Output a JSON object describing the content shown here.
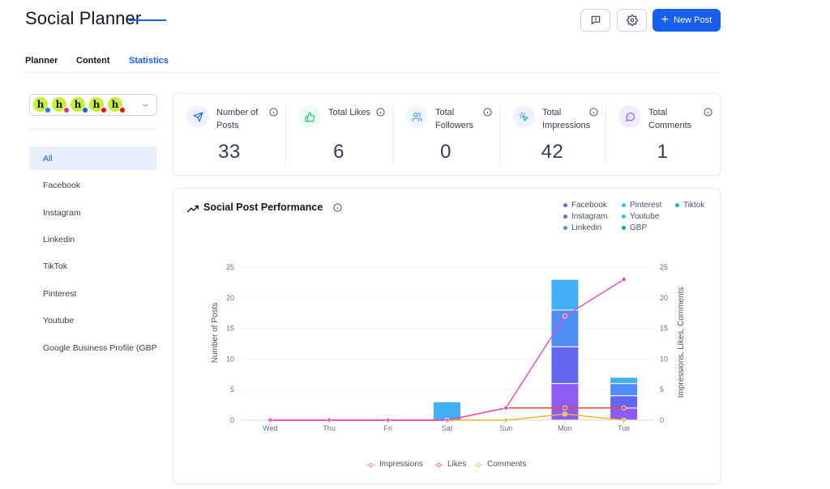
{
  "header": {
    "title": "Social Planner",
    "new_post_label": "New Post"
  },
  "tabs": [
    {
      "label": "Planner",
      "active": false
    },
    {
      "label": "Content",
      "active": false
    },
    {
      "label": "Statistics",
      "active": true
    }
  ],
  "accounts": [
    {
      "initial": "h",
      "badge_color": "#1877f2",
      "platform": "facebook"
    },
    {
      "initial": "h",
      "badge_color": "#e1306c",
      "platform": "instagram"
    },
    {
      "initial": "h",
      "badge_color": "#0a66c2",
      "platform": "linkedin"
    },
    {
      "initial": "h",
      "badge_color": "#e60023",
      "platform": "pinterest"
    },
    {
      "initial": "h",
      "badge_color": "#ff0000",
      "platform": "youtube"
    }
  ],
  "sidebar": {
    "items": [
      {
        "label": "All",
        "active": true
      },
      {
        "label": "Facebook",
        "active": false
      },
      {
        "label": "Instagram",
        "active": false
      },
      {
        "label": "Linkedin",
        "active": false
      },
      {
        "label": "TikTok",
        "active": false
      },
      {
        "label": "Pinterest",
        "active": false
      },
      {
        "label": "Youtube",
        "active": false
      },
      {
        "label": "Google Business Profile (GBP)",
        "active": false
      }
    ]
  },
  "stats": [
    {
      "label": "Number of Posts",
      "value": "33",
      "icon": "send-icon",
      "icon_bg": "#eef4ff",
      "icon_color": "#155eef"
    },
    {
      "label": "Total Likes",
      "value": "6",
      "icon": "thumbs-up-icon",
      "icon_bg": "#ecfdf3",
      "icon_color": "#12b76a"
    },
    {
      "label": "Total Followers",
      "value": "0",
      "icon": "users-icon",
      "icon_bg": "#eff8ff",
      "icon_color": "#2e90fa"
    },
    {
      "label": "Total Impressions",
      "value": "42",
      "icon": "pointer-click-icon",
      "icon_bg": "#eef4ff",
      "icon_color": "#2e90fa"
    },
    {
      "label": "Total Comments",
      "value": "1",
      "icon": "message-icon",
      "icon_bg": "#f4ebff",
      "icon_color": "#7a5af8"
    }
  ],
  "chart_card": {
    "title": "Social Post Performance",
    "legend": [
      {
        "name": "Facebook",
        "color": "#7a5af8"
      },
      {
        "name": "Pinterest",
        "color": "#36bffa"
      },
      {
        "name": "Tiktok",
        "color": "#15b79e"
      },
      {
        "name": "Instagram",
        "color": "#6172f3"
      },
      {
        "name": "Youtube",
        "color": "#22ccee"
      },
      {
        "name": "Linkedin",
        "color": "#528bff"
      },
      {
        "name": "GBP",
        "color": "#0ea5a0"
      }
    ],
    "bottom_legend": [
      {
        "name": "Impressions",
        "color": "#ee46bc"
      },
      {
        "name": "Likes",
        "color": "#f04438"
      },
      {
        "name": "Comments",
        "color": "#fdb022"
      }
    ]
  },
  "chart_data": {
    "type": "bar",
    "categories": [
      "Wed",
      "Thu",
      "Fri",
      "Sat",
      "Sun",
      "Mon",
      "Tue"
    ],
    "ylabel": "Number of Posts",
    "y2label": "Impressions, Likes, Comments",
    "ylim": [
      0,
      25
    ],
    "y2lim": [
      0,
      25
    ],
    "yticks": [
      0,
      5,
      10,
      15,
      20,
      25
    ],
    "stacked_series": [
      {
        "name": "Facebook",
        "color": "#8b5cf6",
        "values": [
          0,
          0,
          0,
          0,
          0,
          6,
          2
        ]
      },
      {
        "name": "Instagram",
        "color": "#6366f1",
        "values": [
          0,
          0,
          0,
          0,
          0,
          6,
          2
        ]
      },
      {
        "name": "Linkedin",
        "color": "#4f8ef7",
        "values": [
          0,
          0,
          0,
          0,
          0,
          6,
          2
        ]
      },
      {
        "name": "Pinterest",
        "color": "#41aef5",
        "values": [
          0,
          0,
          0,
          3,
          0,
          5,
          1
        ]
      }
    ],
    "line_series": [
      {
        "name": "Impressions",
        "color": "#ee46bc",
        "values": [
          0,
          0,
          0,
          0,
          2,
          17,
          23
        ]
      },
      {
        "name": "Likes",
        "color": "#f04438",
        "values": [
          0,
          0,
          0,
          0,
          2,
          2,
          2
        ]
      },
      {
        "name": "Comments",
        "color": "#fdb022",
        "values": [
          0,
          0,
          0,
          0,
          0,
          1,
          0
        ]
      }
    ],
    "grid": true
  }
}
